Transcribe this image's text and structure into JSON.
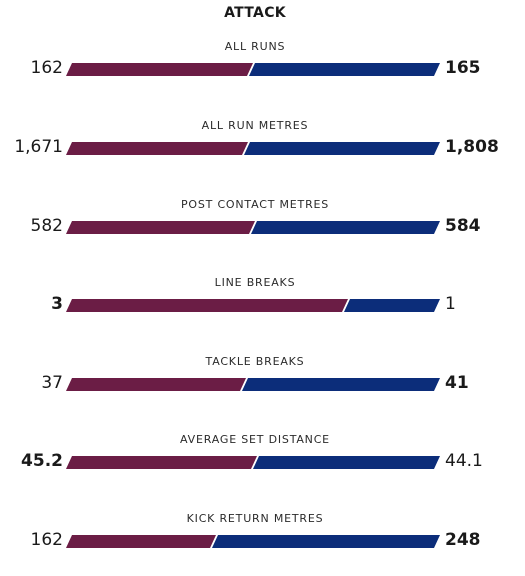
{
  "section": {
    "title": "ATTACK"
  },
  "colors": {
    "home": "#6b1d45",
    "away": "#0c2d7a"
  },
  "stats": [
    {
      "label": "ALL RUNS",
      "home": "162",
      "away": "165",
      "home_value": 162,
      "away_value": 165,
      "leader": "away"
    },
    {
      "label": "ALL RUN METRES",
      "home": "1,671",
      "away": "1,808",
      "home_value": 1671,
      "away_value": 1808,
      "leader": "away"
    },
    {
      "label": "POST CONTACT METRES",
      "home": "582",
      "away": "584",
      "home_value": 582,
      "away_value": 584,
      "leader": "away"
    },
    {
      "label": "LINE BREAKS",
      "home": "3",
      "away": "1",
      "home_value": 3,
      "away_value": 1,
      "leader": "home"
    },
    {
      "label": "TACKLE BREAKS",
      "home": "37",
      "away": "41",
      "home_value": 37,
      "away_value": 41,
      "leader": "away"
    },
    {
      "label": "AVERAGE SET DISTANCE",
      "home": "45.2",
      "away": "44.1",
      "home_value": 45.2,
      "away_value": 44.1,
      "leader": "home"
    },
    {
      "label": "KICK RETURN METRES",
      "home": "162",
      "away": "248",
      "home_value": 162,
      "away_value": 248,
      "leader": "away"
    }
  ]
}
